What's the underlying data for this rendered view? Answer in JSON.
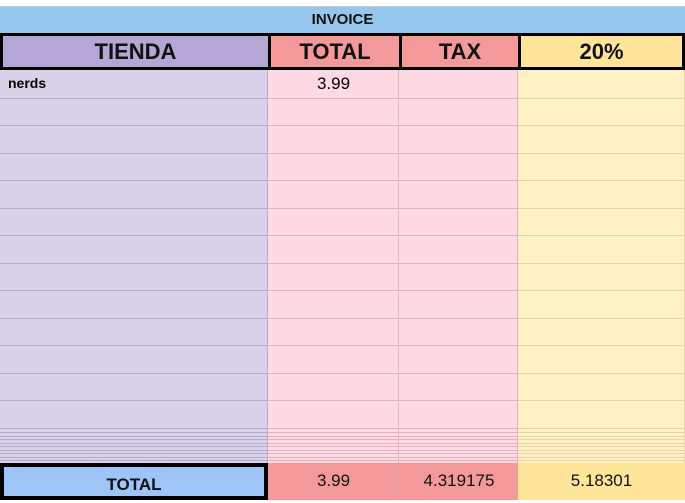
{
  "title": "INVOICE",
  "headers": [
    {
      "label": "TIENDA",
      "color": "#b4a7d6"
    },
    {
      "label": "TOTAL",
      "color": "#f4999a"
    },
    {
      "label": "TAX",
      "color": "#f4999a"
    },
    {
      "label": "20%",
      "color": "#ffe599"
    }
  ],
  "column_colors": [
    "#d9d2e9",
    "#ffd9e4",
    "#ffd9e4",
    "#fff0c6"
  ],
  "rows": [
    {
      "tienda": "nerds",
      "total": "3.99",
      "tax": "",
      "pct": ""
    }
  ],
  "totals": {
    "label": "TOTAL",
    "total": "3.99",
    "tax": "4.319175",
    "pct": "5.18301",
    "label_color": "#9fc5f8",
    "value_color": "#f4999a",
    "pct_color": "#ffe599"
  }
}
